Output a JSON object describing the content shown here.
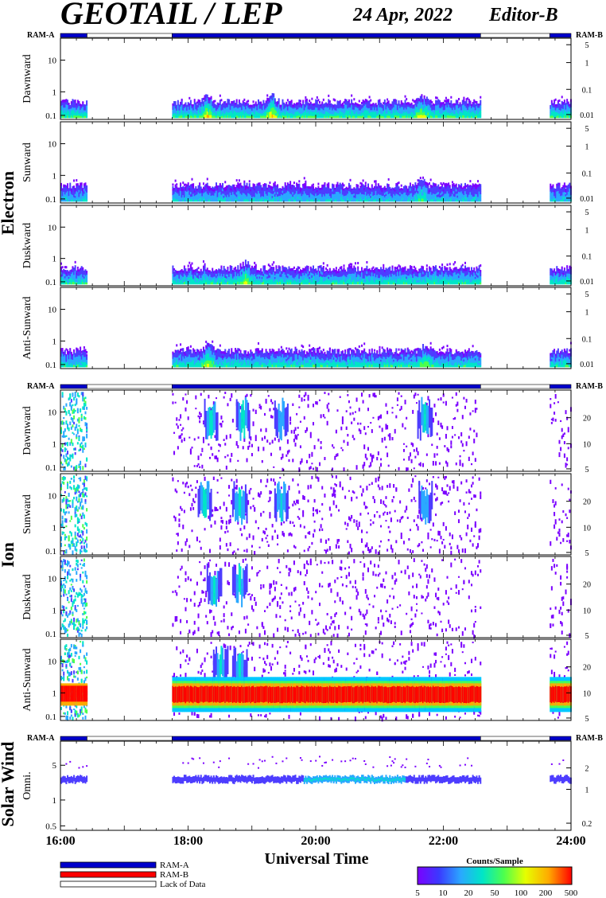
{
  "header": {
    "title": "GEOTAIL / LEP",
    "date": "24 Apr, 2022",
    "editor": "Editor-B"
  },
  "groups": {
    "electron": "Electron",
    "ion": "Ion",
    "solar_wind": "Solar Wind"
  },
  "ram": {
    "left": "RAM-A",
    "right": "RAM-B"
  },
  "colors": {
    "ram_a": "#0000cc",
    "ram_b": "#ff0000",
    "lack": "#ffffff",
    "scale": [
      "#7b00ff",
      "#4d3dff",
      "#2aa8ff",
      "#00e5c8",
      "#4dff4d",
      "#e6ff00",
      "#ffaa00",
      "#ff0000"
    ]
  },
  "chart_data": {
    "type": "heatmap",
    "xlabel": "Universal Time",
    "x_ticks": [
      "16:00",
      "18:00",
      "20:00",
      "22:00",
      "24:00"
    ],
    "xlim": [
      "16:00",
      "24:00"
    ],
    "data_intervals": [
      [
        "16:00",
        "16:25"
      ],
      [
        "17:45",
        "22:35"
      ],
      [
        "23:40",
        "24:00"
      ]
    ],
    "ram_bar": [
      {
        "from": "16:00",
        "to": "16:25",
        "mode": "RAM-A"
      },
      {
        "from": "16:25",
        "to": "17:45",
        "mode": "Lack of Data"
      },
      {
        "from": "17:45",
        "to": "22:35",
        "mode": "RAM-A"
      },
      {
        "from": "22:35",
        "to": "23:40",
        "mode": "Lack of Data"
      },
      {
        "from": "23:40",
        "to": "24:00",
        "mode": "RAM-A"
      }
    ],
    "panels": [
      {
        "group": "electron",
        "label": "Dawnward",
        "y_left": [
          "10",
          "1",
          "0.1"
        ],
        "y_right": [
          "5",
          "1",
          "0.1",
          "0.01"
        ],
        "kind": "e",
        "intensity": 0.55,
        "bursts": [
          [
            18.3,
            0.8
          ],
          [
            19.3,
            0.8
          ],
          [
            21.65,
            0.7
          ]
        ]
      },
      {
        "group": "electron",
        "label": "Sunward",
        "y_left": [
          "10",
          "1",
          "0.1"
        ],
        "y_right": [
          "5",
          "1",
          "0.1",
          "0.01"
        ],
        "kind": "e",
        "intensity": 0.4,
        "bursts": [
          [
            21.65,
            0.6
          ]
        ]
      },
      {
        "group": "electron",
        "label": "Duskward",
        "y_left": [
          "10",
          "1",
          "0.1"
        ],
        "y_right": [
          "5",
          "1",
          "0.1",
          "0.01"
        ],
        "kind": "e",
        "intensity": 0.5,
        "bursts": [
          [
            18.9,
            0.7
          ]
        ]
      },
      {
        "group": "electron",
        "label": "Anti-Sunward",
        "y_left": [
          "10",
          "1",
          "0.1"
        ],
        "y_right": [
          "5",
          "1",
          "0.1",
          "0.01"
        ],
        "kind": "e",
        "intensity": 0.5,
        "bursts": [
          [
            18.3,
            0.7
          ],
          [
            21.7,
            0.6
          ]
        ]
      },
      {
        "group": "ion",
        "label": "Dawnward",
        "y_left": [
          "10",
          "1",
          "0.1"
        ],
        "y_right": [
          "20",
          "10",
          "5"
        ],
        "kind": "i",
        "intensity": 0.3,
        "bursts": [
          [
            18.35,
            0.8
          ],
          [
            18.85,
            0.8
          ],
          [
            19.45,
            0.6
          ],
          [
            21.7,
            0.7
          ]
        ]
      },
      {
        "group": "ion",
        "label": "Sunward",
        "y_left": [
          "10",
          "1",
          "0.1"
        ],
        "y_right": [
          "20",
          "10",
          "5"
        ],
        "kind": "i",
        "intensity": 0.3,
        "bursts": [
          [
            18.25,
            0.9
          ],
          [
            18.8,
            0.8
          ],
          [
            19.45,
            0.7
          ],
          [
            21.7,
            0.6
          ]
        ]
      },
      {
        "group": "ion",
        "label": "Duskward",
        "y_left": [
          "10",
          "1",
          "0.1"
        ],
        "y_right": [
          "20",
          "10",
          "5"
        ],
        "kind": "i",
        "intensity": 0.25,
        "bursts": [
          [
            18.4,
            0.7
          ],
          [
            18.8,
            0.7
          ]
        ]
      },
      {
        "group": "ion",
        "label": "Anti-Sunward",
        "y_left": [
          "10",
          "1",
          "0.1"
        ],
        "y_right": [
          "20",
          "10",
          "5"
        ],
        "kind": "ia",
        "intensity": 1.0,
        "bursts": [
          [
            18.5,
            0.7
          ],
          [
            18.8,
            0.7
          ]
        ]
      },
      {
        "group": "solar_wind",
        "label": "Omni.",
        "y_left": [
          "5",
          "1",
          "0.5"
        ],
        "y_right": [
          "2",
          "1",
          "0.2"
        ],
        "kind": "sw",
        "intensity": 0.5,
        "bursts": []
      }
    ],
    "colorbar": {
      "title": "Counts/Sample",
      "ticks": [
        "5",
        "10",
        "20",
        "50",
        "100",
        "200",
        "500"
      ]
    },
    "legend": [
      {
        "label": "RAM-A",
        "color": "#0000cc"
      },
      {
        "label": "RAM-B",
        "color": "#ff0000"
      },
      {
        "label": "Lack of Data",
        "color": "#ffffff"
      }
    ]
  }
}
